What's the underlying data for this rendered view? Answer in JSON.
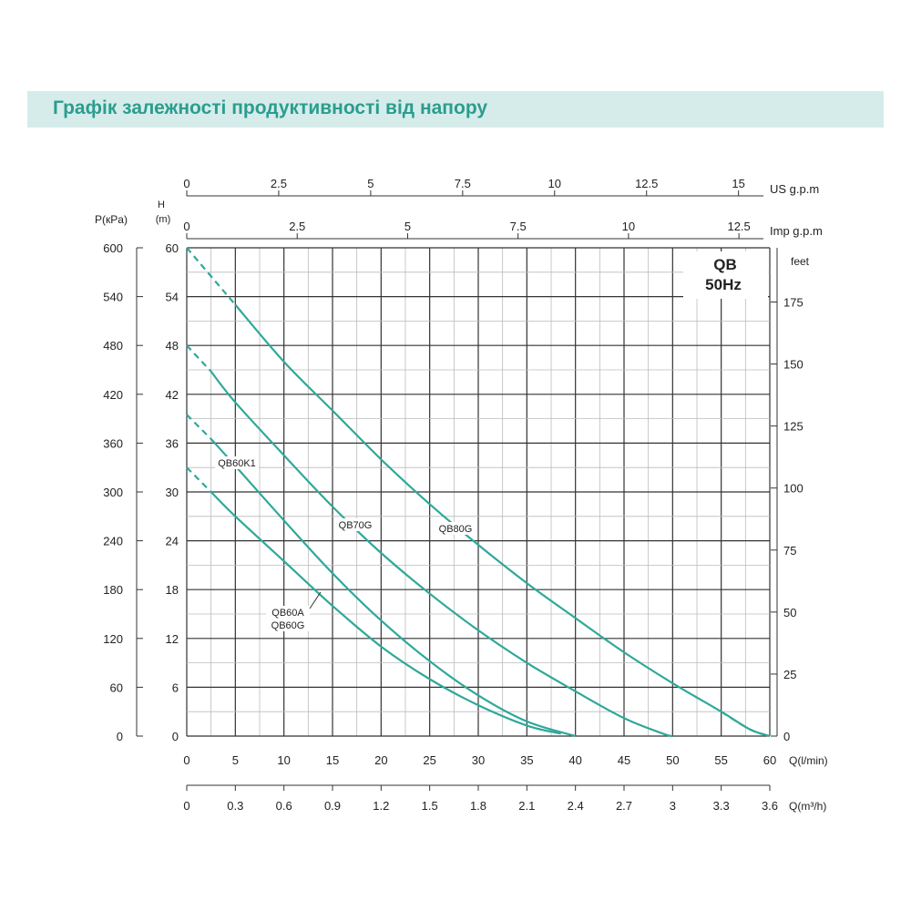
{
  "header": {
    "title": "Графік залежності продуктивності від напору"
  },
  "chart_data": {
    "type": "line",
    "badge": {
      "line1": "QB",
      "line2": "50Hz"
    },
    "x_axes": {
      "q_lmin": {
        "label": "Q(l/min)",
        "range": [
          0,
          60
        ],
        "ticks": [
          0,
          5,
          10,
          15,
          20,
          25,
          30,
          35,
          40,
          45,
          50,
          55,
          60
        ]
      },
      "q_m3h": {
        "label": "Q(m³/h)",
        "range": [
          0,
          3.6
        ],
        "ticks": [
          0,
          0.3,
          0.6,
          0.9,
          1.2,
          1.5,
          1.8,
          2.1,
          2.4,
          2.7,
          3,
          3.3,
          3.6
        ]
      },
      "us_gpm": {
        "label": "US g.p.m",
        "ticks": [
          0,
          2.5,
          5,
          7.5,
          10,
          12.5,
          15
        ]
      },
      "imp_gpm": {
        "label": "Imp g.p.m",
        "ticks": [
          0,
          2.5,
          5,
          7.5,
          10,
          12.5
        ]
      }
    },
    "y_axes": {
      "h_m": {
        "label_top": "H",
        "label_bottom": "(m)",
        "range": [
          0,
          60
        ],
        "ticks": [
          0,
          6,
          12,
          18,
          24,
          30,
          36,
          42,
          48,
          54,
          60
        ]
      },
      "p_kpa": {
        "label": "P(кPa)",
        "ticks": [
          0,
          60,
          120,
          180,
          240,
          300,
          360,
          420,
          480,
          540,
          600
        ]
      },
      "feet": {
        "label": "feet",
        "ticks": [
          0,
          25,
          50,
          75,
          100,
          125,
          150,
          175
        ]
      }
    },
    "grid": true,
    "series": [
      {
        "name": "QB80G",
        "dashed_until": 5,
        "points": [
          [
            0,
            60
          ],
          [
            5,
            53
          ],
          [
            10,
            46
          ],
          [
            15,
            40
          ],
          [
            20,
            34
          ],
          [
            25,
            28.5
          ],
          [
            30,
            23.5
          ],
          [
            35,
            18.8
          ],
          [
            40,
            14.5
          ],
          [
            45,
            10.3
          ],
          [
            50,
            6.5
          ],
          [
            55,
            3
          ],
          [
            58,
            0.8
          ],
          [
            60,
            0
          ]
        ]
      },
      {
        "name": "QB70G",
        "dashed_until": 2.5,
        "points": [
          [
            0,
            48
          ],
          [
            2.5,
            44.8
          ],
          [
            5,
            41
          ],
          [
            10,
            34.5
          ],
          [
            15,
            28.2
          ],
          [
            20,
            22.5
          ],
          [
            25,
            17.5
          ],
          [
            30,
            13
          ],
          [
            35,
            9
          ],
          [
            40,
            5.5
          ],
          [
            45,
            2.2
          ],
          [
            49,
            0.3
          ],
          [
            50,
            0
          ]
        ]
      },
      {
        "name": "QB60K1",
        "dashed_until": 2.5,
        "points": [
          [
            0,
            39.5
          ],
          [
            2.5,
            36.5
          ],
          [
            5,
            33.2
          ],
          [
            10,
            26.5
          ],
          [
            15,
            20
          ],
          [
            20,
            14.2
          ],
          [
            25,
            9.2
          ],
          [
            30,
            5
          ],
          [
            35,
            1.8
          ],
          [
            40,
            0
          ]
        ]
      },
      {
        "name": "QB60A",
        "dashed_until": 2.5,
        "points": [
          [
            0,
            33
          ],
          [
            2.5,
            30
          ],
          [
            5,
            27
          ],
          [
            10,
            21.5
          ],
          [
            15,
            16
          ],
          [
            20,
            11
          ],
          [
            25,
            7
          ],
          [
            30,
            3.8
          ],
          [
            35,
            1.3
          ],
          [
            38.5,
            0.3
          ]
        ]
      },
      {
        "name": "QB60G",
        "dashed_until": 0,
        "points": []
      }
    ]
  }
}
